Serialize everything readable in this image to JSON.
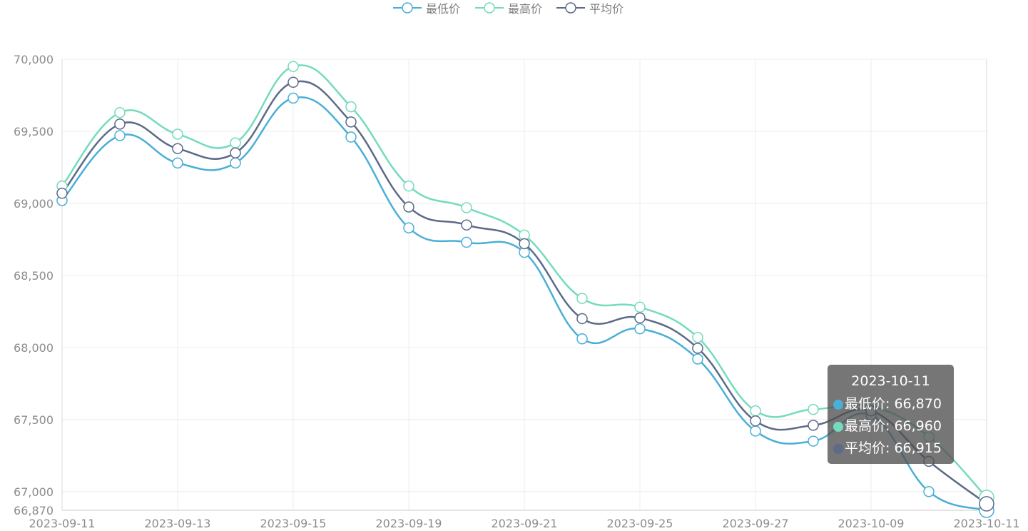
{
  "legend": [
    {
      "label": "最低价",
      "color": "#4aafd6"
    },
    {
      "label": "最高价",
      "color": "#74dbbd"
    },
    {
      "label": "平均价",
      "color": "#5d6a88"
    }
  ],
  "tooltip": {
    "title": "2023-10-11",
    "rows": [
      {
        "label": "最低价: 66,870",
        "color": "#4aafd6"
      },
      {
        "label": "最高价: 66,960",
        "color": "#74dbbd"
      },
      {
        "label": "平均价: 66,915",
        "color": "#5d6a88"
      }
    ]
  },
  "chart_data": {
    "type": "line",
    "smooth": true,
    "x": [
      "2023-09-11",
      "2023-09-12",
      "2023-09-13",
      "2023-09-14",
      "2023-09-15",
      "2023-09-18",
      "2023-09-19",
      "2023-09-20",
      "2023-09-21",
      "2023-09-22",
      "2023-09-25",
      "2023-09-26",
      "2023-09-27",
      "2023-09-28",
      "2023-10-09",
      "2023-10-10",
      "2023-10-11"
    ],
    "x_tick_labels": [
      "2023-09-11",
      "2023-09-13",
      "2023-09-15",
      "2023-09-19",
      "2023-09-21",
      "2023-09-25",
      "2023-09-27",
      "2023-10-09",
      "2023-10-11"
    ],
    "y_tick_labels": [
      "66,870",
      "67,000",
      "67,500",
      "68,000",
      "68,500",
      "69,000",
      "69,500",
      "70,000"
    ],
    "y_ticks": [
      66870,
      67000,
      67500,
      68000,
      68500,
      69000,
      69500,
      70000
    ],
    "ylim": [
      66870,
      70000
    ],
    "grid": true,
    "legend_position": "top-center",
    "highlight_index": 16,
    "series": [
      {
        "name": "最低价",
        "color": "#4aafd6",
        "values": [
          69020,
          69470,
          69280,
          69280,
          69730,
          69460,
          68830,
          68730,
          68660,
          68060,
          68130,
          67920,
          67420,
          67350,
          67530,
          67000,
          66870
        ]
      },
      {
        "name": "最高价",
        "color": "#74dbbd",
        "values": [
          69120,
          69630,
          69480,
          69420,
          69950,
          69670,
          69120,
          68970,
          68780,
          68340,
          68280,
          68070,
          67560,
          67570,
          67590,
          67380,
          66960
        ]
      },
      {
        "name": "平均价",
        "color": "#5d6a88",
        "values": [
          69070,
          69550,
          69380,
          69350,
          69840,
          69565,
          68975,
          68850,
          68720,
          68200,
          68205,
          67995,
          67490,
          67460,
          67560,
          67210,
          66915
        ]
      }
    ]
  }
}
